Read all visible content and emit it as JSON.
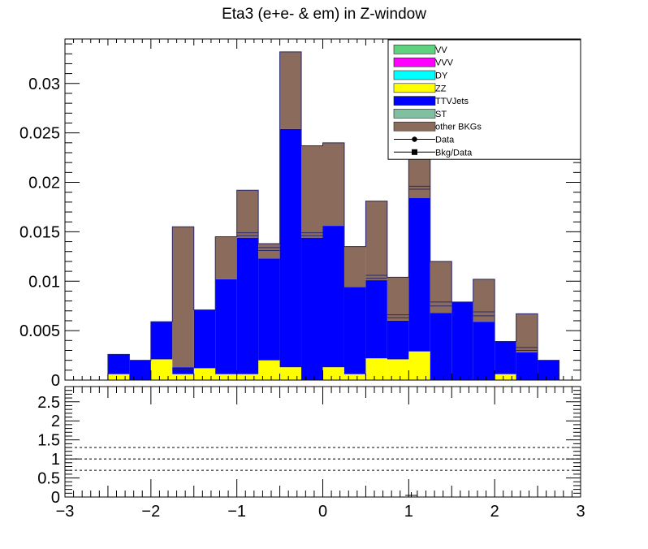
{
  "chart_data": [
    {
      "type": "bar",
      "stacked": true,
      "title": "Eta3 (e+e- & em) in Z-window",
      "xlabel": "",
      "ylabel": "",
      "xlim": [
        -3,
        3
      ],
      "ylim": [
        0,
        0.0345
      ],
      "bin_edges": [
        -3.0,
        -2.75,
        -2.5,
        -2.25,
        -2.0,
        -1.75,
        -1.5,
        -1.25,
        -1.0,
        -0.75,
        -0.5,
        -0.25,
        0.0,
        0.25,
        0.5,
        0.75,
        1.0,
        1.25,
        1.5,
        1.75,
        2.0,
        2.25,
        2.5,
        2.75,
        3.0
      ],
      "yticks": [
        "0",
        "0.005",
        "0.01",
        "0.015",
        "0.02",
        "0.025",
        "0.03"
      ],
      "ytick_values": [
        0,
        0.005,
        0.01,
        0.015,
        0.02,
        0.025,
        0.03
      ],
      "grid": false,
      "legend_position": "top-right",
      "series": [
        {
          "name": "ZZ",
          "color": "#ffff00",
          "values": [
            0,
            0,
            0.0006,
            0,
            0.0021,
            0.0006,
            0.0012,
            0.0006,
            0.0006,
            0.002,
            0.0013,
            0,
            0.0013,
            0.0006,
            0.0022,
            0.0021,
            0.0029,
            0,
            0,
            0,
            0.0006,
            0,
            0,
            0
          ]
        },
        {
          "name": "TTVJets",
          "color": "#0000ff",
          "values": [
            0,
            0,
            0.002,
            0.002,
            0.0038,
            0.0007,
            0.0059,
            0.0096,
            0.0138,
            0.0103,
            0.0241,
            0.0144,
            0.0143,
            0.0088,
            0.0079,
            0.0039,
            0.0155,
            0.0068,
            0.0079,
            0.0059,
            0.0033,
            0.0028,
            0.002,
            0
          ]
        },
        {
          "name": "other BKGs",
          "color": "#8b6c5c",
          "values": [
            0,
            0,
            0,
            0,
            0,
            0.0142,
            0,
            0.0043,
            0.0048,
            0.0015,
            0.0078,
            0.0093,
            0.0084,
            0.0041,
            0.008,
            0.0044,
            0.0102,
            0.0052,
            0,
            0.0043,
            0,
            0.0039,
            0,
            0
          ]
        }
      ],
      "internal_lines": [
        [],
        [],
        [],
        [],
        [],
        [
          0.0011
        ],
        [],
        [],
        [
          0.0146,
          0.0149
        ],
        [
          0.0131,
          0.0134
        ],
        [],
        [
          0.0146,
          0.0149
        ],
        [],
        [],
        [
          0.0103,
          0.0106
        ],
        [
          0.0063,
          0.0066
        ],
        [
          0.0193,
          0.0196
        ],
        [
          0.0075,
          0.0079
        ],
        [],
        [
          0.0065,
          0.0069
        ],
        [],
        [
          0.003,
          0.0033
        ],
        [],
        []
      ],
      "legend": [
        {
          "label": "VV",
          "color": "#5ed27c",
          "kind": "box"
        },
        {
          "label": "VVV",
          "color": "#ff00ff",
          "kind": "box"
        },
        {
          "label": "DY",
          "color": "#00ffff",
          "kind": "box"
        },
        {
          "label": "ZZ",
          "color": "#ffff00",
          "kind": "box"
        },
        {
          "label": "TTVJets",
          "color": "#0000ff",
          "kind": "box"
        },
        {
          "label": "ST",
          "color": "#80c0a0",
          "kind": "box"
        },
        {
          "label": "other BKGs",
          "color": "#8b6c5c",
          "kind": "box"
        },
        {
          "label": "Data",
          "color": "#000000",
          "kind": "circle"
        },
        {
          "label": "Bkg/Data",
          "color": "#000000",
          "kind": "square"
        }
      ]
    },
    {
      "type": "line",
      "title": "",
      "xlabel": "",
      "ylabel": "",
      "xlim": [
        -3,
        3
      ],
      "ylim": [
        0,
        2.9
      ],
      "xticks": [
        "−3",
        "−2",
        "−1",
        "0",
        "1",
        "2",
        "3"
      ],
      "xtick_values": [
        -3,
        -2,
        -1,
        0,
        1,
        2,
        3
      ],
      "yticks": [
        "0",
        "0.5",
        "1",
        "1.5",
        "2",
        "2.5"
      ],
      "ytick_values": [
        0,
        0.5,
        1,
        1.5,
        2,
        2.5
      ],
      "reference_lines": [
        0.7,
        1.0,
        1.3
      ]
    }
  ]
}
